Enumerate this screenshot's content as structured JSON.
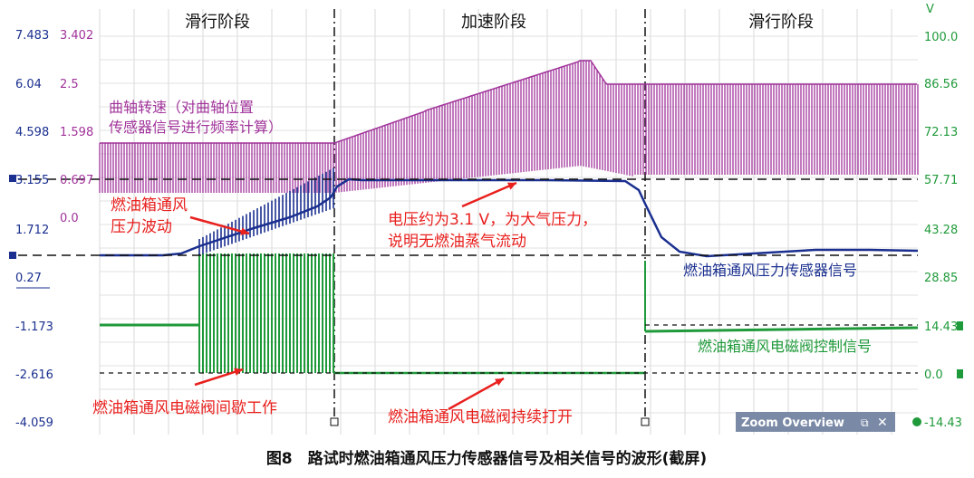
{
  "caption": "图8　路试时燃油箱通风压力传感器信号及相关信号的波形(截屏)",
  "zoom_overview": {
    "title": "Zoom Overview"
  },
  "phases": [
    "滑行阶段",
    "加速阶段",
    "滑行阶段"
  ],
  "axes": {
    "left_blue": [
      "7.483",
      "6.04",
      "4.598",
      "3.155",
      "1.712",
      "0.27",
      "-1.173",
      "-2.616",
      "-4.059"
    ],
    "left_magenta": [
      "3.402",
      "2.5",
      "1.598",
      "0.697",
      "0.0"
    ],
    "right_green_unit": "V",
    "right_green": [
      "100.0",
      "86.56",
      "72.13",
      "57.71",
      "43.28",
      "28.85",
      "14.43",
      "0.0",
      "-14.43"
    ]
  },
  "annotations": {
    "rpm_label_1": "曲轴转速（对曲轴位置",
    "rpm_label_2": "传感器信号进行频率计算）",
    "pressure_wave_1": "燃油箱通风",
    "pressure_wave_2": "压力波动",
    "voltage_note_1": "电压约为3.1 V，为大气压力，",
    "voltage_note_2": "说明无燃油蒸气流动",
    "pressure_sensor": "燃油箱通风压力传感器信号",
    "solenoid_control": "燃油箱通风电磁阀控制信号",
    "solenoid_intermittent": "燃油箱通风电磁阀间歇工作",
    "solenoid_open": "燃油箱通风电磁阀持续打开"
  },
  "colors": {
    "pressure": "#1a2f8f",
    "rpm": "#a0339a",
    "solenoid": "#1f9a3a",
    "annotation": "#e8201e"
  },
  "chart_data": {
    "type": "line",
    "title": "",
    "series": [
      {
        "name": "燃油箱通风压力传感器信号",
        "x": [
          0.0,
          0.1,
          0.2,
          0.3,
          0.32,
          0.34,
          0.36,
          0.4,
          0.6,
          0.8,
          0.85,
          0.9,
          1.0
        ],
        "values": [
          0.27,
          0.27,
          0.8,
          1.7,
          2.2,
          3.1,
          3.15,
          3.15,
          3.15,
          3.15,
          0.27,
          0.4,
          0.27
        ]
      },
      {
        "name": "曲轴转速",
        "x": [
          0.0,
          0.3,
          0.34,
          0.45,
          0.55,
          0.6,
          0.62,
          0.7,
          1.0
        ],
        "values": [
          1.4,
          1.45,
          1.5,
          1.9,
          2.5,
          2.9,
          2.6,
          2.55,
          2.5
        ]
      },
      {
        "name": "燃油箱通风电磁阀控制信号",
        "x": [
          0.0,
          0.2,
          0.21,
          0.33,
          0.34,
          0.67,
          0.68,
          1.0
        ],
        "values": [
          14.43,
          14.43,
          28.85,
          14.43,
          0.0,
          0.0,
          14.43,
          14.43
        ]
      }
    ]
  }
}
